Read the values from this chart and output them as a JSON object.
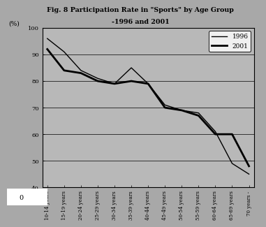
{
  "title_line1": "Fig. 8 Participation Rate in \"Sports\" by Age Group",
  "title_line2": "-1996 and 2001",
  "ylabel": "(%)",
  "categories": [
    "10-14 years",
    "15-19 years",
    "20-24 years",
    "25-29 years",
    "30-34 years",
    "35-39 years",
    "40-44 years",
    "45-49 years",
    "50-54 years",
    "55-59 years",
    "60-64 years",
    "65-69 years",
    "70 years -"
  ],
  "values_1996": [
    96,
    91,
    84,
    81,
    79,
    85,
    79,
    71,
    69,
    68,
    61,
    49,
    45
  ],
  "values_2001": [
    92,
    84,
    83,
    80,
    79,
    80,
    79,
    70,
    69,
    67,
    60,
    60,
    48
  ],
  "color_1996": "#000000",
  "color_2001": "#000000",
  "lw_1996": 1.0,
  "lw_2001": 2.0,
  "ylim": [
    40,
    100
  ],
  "yticks": [
    40,
    50,
    60,
    70,
    80,
    90,
    100
  ],
  "fig_bg_color": "#a8a8a8",
  "plot_bg_color": "#b8b8b8",
  "legend_1996": "1996",
  "legend_2001": "2001",
  "zero_label": "0"
}
